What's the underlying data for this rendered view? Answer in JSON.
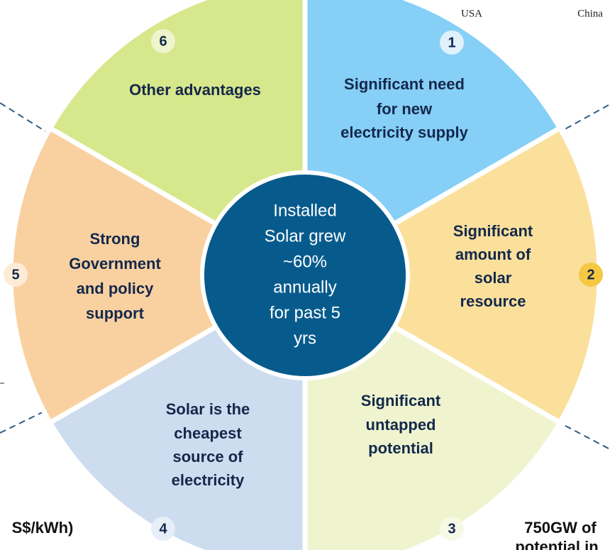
{
  "center": {
    "lines": [
      "Installed",
      "Solar grew",
      "~60%",
      "annually",
      "for past 5",
      "yrs"
    ]
  },
  "segments": [
    {
      "number": "1",
      "lines": [
        "Significant need",
        "for new",
        "electricity supply"
      ]
    },
    {
      "number": "2",
      "lines": [
        "Significant",
        "amount of",
        "solar",
        "resource"
      ]
    },
    {
      "number": "3",
      "lines": [
        "Significant",
        "untapped",
        "potential"
      ]
    },
    {
      "number": "4",
      "lines": [
        "Solar is the",
        "cheapest",
        "source of",
        "electricity"
      ]
    },
    {
      "number": "5",
      "lines": [
        "Strong",
        "Government",
        "and policy",
        "support"
      ]
    },
    {
      "number": "6",
      "lines": [
        "Other advantages"
      ]
    }
  ],
  "fragments": [
    "USA",
    "China",
    "S$/kWh)",
    "750GW of",
    "potential in"
  ]
}
